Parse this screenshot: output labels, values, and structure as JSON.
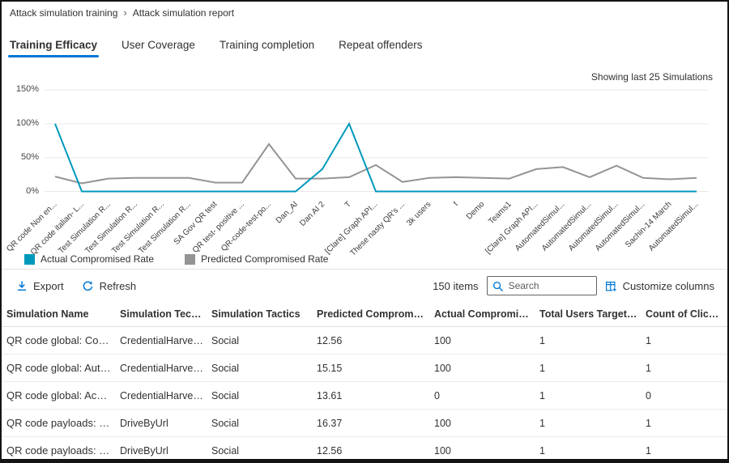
{
  "breadcrumb": {
    "parent": "Attack simulation training",
    "current": "Attack simulation report"
  },
  "tabs": [
    {
      "label": "Training Efficacy",
      "active": true
    },
    {
      "label": "User Coverage",
      "active": false
    },
    {
      "label": "Training completion",
      "active": false
    },
    {
      "label": "Repeat offenders",
      "active": false
    }
  ],
  "chart_note": "Showing last 25 Simulations",
  "chart_data": {
    "type": "line",
    "title": "Training Efficacy",
    "grid": true,
    "legend_position": "bottom-left",
    "ylim": [
      0,
      150
    ],
    "ytick_values": [
      0,
      50,
      100,
      150
    ],
    "ytick_labels": [
      "0%",
      "50%",
      "100%",
      "150%"
    ],
    "categories": [
      "QR code Non en...",
      "QR code italian- L...",
      "Test Simulation R...",
      "Test Simulation R...",
      "Test Simulation R...",
      "Test Simulation R...",
      "SA Gov QR test",
      "QR test- positive ...",
      "QR-code-test-po...",
      "Dan_AI",
      "Dan AI 2",
      "T",
      "[Clare] Graph API...",
      "These nasty QR's ...",
      "3k users",
      "t",
      "Demo",
      "Teams1",
      "[Clare] Graph API...",
      "AutomatedSimul...",
      "AutomatedSimul...",
      "AutomatedSimul...",
      "AutomatedSimul...",
      "Sachin-14 March",
      "AutomatedSimul..."
    ],
    "series": [
      {
        "name": "Actual Compromised Rate",
        "color": "#0099bc",
        "values": [
          100,
          0,
          0,
          0,
          0,
          0,
          0,
          0,
          0,
          0,
          33,
          100,
          0,
          0,
          0,
          0,
          0,
          0,
          0,
          0,
          0,
          0,
          0,
          0,
          0
        ]
      },
      {
        "name": "Predicted Compromised Rate",
        "color": "#949494",
        "values": [
          22,
          12,
          19,
          20,
          20,
          20,
          13,
          13,
          70,
          19,
          19,
          21,
          39,
          14,
          20,
          21,
          20,
          19,
          33,
          36,
          21,
          38,
          20,
          18,
          20
        ]
      }
    ]
  },
  "toolbar": {
    "export_label": "Export",
    "refresh_label": "Refresh",
    "items_count": "150 items",
    "search_placeholder": "Search",
    "customize_label": "Customize columns"
  },
  "table": {
    "columns": [
      "Simulation Name",
      "Simulation Technique",
      "Simulation Tactics",
      "Predicted Compromised Rate",
      "Actual Compromised Rate",
      "Total Users Targeted",
      "Count of Clicked Users"
    ],
    "rows": [
      [
        "QR code global: Conferenc...",
        "CredentialHarvesting",
        "Social",
        "12.56",
        "100",
        "1",
        "1"
      ],
      [
        "QR code global: Authentic...",
        "CredentialHarvesting",
        "Social",
        "15.15",
        "100",
        "1",
        "1"
      ],
      [
        "QR code global: Account S...",
        "CredentialHarvesting",
        "Social",
        "13.61",
        "0",
        "1",
        "0"
      ],
      [
        "QR code payloads: False Ch...",
        "DriveByUrl",
        "Social",
        "16.37",
        "100",
        "1",
        "1"
      ],
      [
        "QR code payloads: Confere...",
        "DriveByUrl",
        "Social",
        "12.56",
        "100",
        "1",
        "1"
      ]
    ]
  },
  "colors": {
    "accent": "#0078d4",
    "actual_line": "#0099bc",
    "predicted_line": "#949494"
  }
}
